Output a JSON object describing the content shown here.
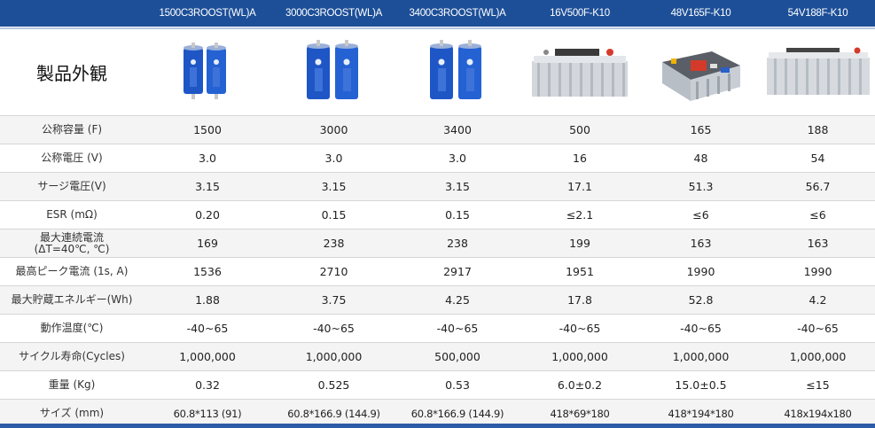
{
  "header": {
    "columns": [
      "1500C3ROOST(WL)A",
      "3000C3ROOST(WL)A",
      "3400C3ROOST(WL)A",
      "16V500F-K10",
      "48V165F-K10",
      "54V188F-K10"
    ]
  },
  "photo_row": {
    "label": "製品外観",
    "images": [
      "cylindrical-capacitor-pair",
      "cylindrical-capacitor-pair",
      "cylindrical-capacitor-pair",
      "capacitor-module-16v",
      "capacitor-module-48v",
      "capacitor-module-54v"
    ]
  },
  "rows": [
    {
      "label": "公称容量 (F)",
      "values": [
        "1500",
        "3000",
        "3400",
        "500",
        "165",
        "188"
      ]
    },
    {
      "label": "公称電圧 (V)",
      "values": [
        "3.0",
        "3.0",
        "3.0",
        "16",
        "48",
        "54"
      ]
    },
    {
      "label": "サージ電圧(V)",
      "values": [
        "3.15",
        "3.15",
        "3.15",
        "17.1",
        "51.3",
        "56.7"
      ]
    },
    {
      "label": "ESR (mΩ)",
      "values": [
        "0.20",
        "0.15",
        "0.15",
        "≤2.1",
        "≤6",
        "≤6"
      ]
    },
    {
      "label": "最大連続電流\n(ΔT=40℃, ℃)",
      "values": [
        "169",
        "238",
        "238",
        "199",
        "163",
        "163"
      ]
    },
    {
      "label": "最高ピーク電流 (1s, A)",
      "values": [
        "1536",
        "2710",
        "2917",
        "1951",
        "1990",
        "1990"
      ]
    },
    {
      "label": "最大貯蔵エネルギー(Wh)",
      "values": [
        "1.88",
        "3.75",
        "4.25",
        "17.8",
        "52.8",
        "4.2"
      ]
    },
    {
      "label": "動作温度(℃)",
      "values": [
        "-40~65",
        "-40~65",
        "-40~65",
        "-40~65",
        "-40~65",
        "-40~65"
      ]
    },
    {
      "label": "サイクル寿命(Cycles)",
      "values": [
        "1,000,000",
        "1,000,000",
        "500,000",
        "1,000,000",
        "1,000,000",
        "1,000,000"
      ]
    },
    {
      "label": "重量 (Kg)",
      "values": [
        "0.32",
        "0.525",
        "0.53",
        "6.0±0.2",
        "15.0±0.5",
        "≤15"
      ]
    },
    {
      "label": "サイズ (mm)",
      "values": [
        "60.8*113 (91)",
        "60.8*166.9 (144.9)",
        "60.8*166.9 (144.9)",
        "418*69*180",
        "418*194*180",
        "418x194x180"
      ]
    }
  ],
  "colors": {
    "header_band": "#1d4f98",
    "capacitor_blue": "#1f56c6",
    "module_silver": "#cfd3d8"
  }
}
